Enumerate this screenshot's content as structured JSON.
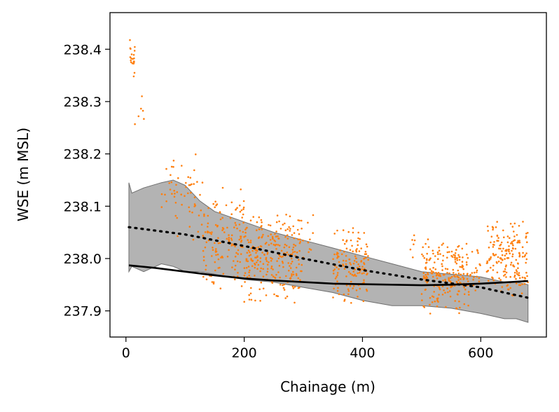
{
  "chart_data": {
    "type": "scatter",
    "title": "",
    "xlabel": "Chainage (m)",
    "ylabel": "WSE (m MSL)",
    "xlim": [
      -27,
      711
    ],
    "ylim": [
      237.85,
      238.47
    ],
    "xticks": [
      0,
      200,
      400,
      600
    ],
    "yticks": [
      237.9,
      238.0,
      238.1,
      238.2,
      238.3,
      238.4
    ],
    "ytick_labels": [
      "237.9",
      "238.0",
      "238.1",
      "238.2",
      "238.3",
      "238.4"
    ],
    "xtick_labels": [
      "0",
      "200",
      "400",
      "600"
    ],
    "grid": false,
    "legend": null,
    "colors": {
      "points": "#ff7f0e",
      "band": "#808080",
      "lines": "#000000"
    },
    "band": {
      "x": [
        5,
        10,
        30,
        60,
        80,
        100,
        125,
        150,
        200,
        250,
        300,
        350,
        400,
        450,
        500,
        550,
        600,
        640,
        660,
        680
      ],
      "upper": [
        238.145,
        238.125,
        238.135,
        238.145,
        238.15,
        238.14,
        238.11,
        238.09,
        238.07,
        238.05,
        238.035,
        238.02,
        238.005,
        237.99,
        237.975,
        237.97,
        237.965,
        237.955,
        237.955,
        237.95
      ],
      "lower": [
        237.975,
        237.985,
        237.975,
        237.99,
        237.985,
        237.975,
        237.975,
        237.97,
        237.96,
        237.955,
        237.945,
        237.935,
        237.92,
        237.91,
        237.91,
        237.905,
        237.895,
        237.885,
        237.885,
        237.878
      ]
    },
    "series": [
      {
        "style": "solid",
        "x": [
          5,
          50,
          100,
          150,
          200,
          250,
          300,
          350,
          400,
          450,
          500,
          550,
          600,
          650,
          680
        ],
        "y": [
          237.987,
          237.982,
          237.975,
          237.968,
          237.962,
          237.958,
          237.955,
          237.952,
          237.951,
          237.95,
          237.949,
          237.95,
          237.952,
          237.955,
          237.957
        ]
      },
      {
        "style": "dotted",
        "x": [
          5,
          100,
          200,
          300,
          400,
          500,
          600,
          680
        ],
        "y": [
          238.06,
          238.046,
          238.024,
          238.0,
          237.978,
          237.96,
          237.945,
          237.925
        ]
      }
    ],
    "scatter_clusters": [
      {
        "x": [
          5,
          15
        ],
        "y": [
          238.33,
          238.44
        ],
        "n": 20
      },
      {
        "x": [
          15,
          40
        ],
        "y": [
          238.22,
          238.35
        ],
        "n": 6
      },
      {
        "x": [
          60,
          130
        ],
        "y": [
          238.02,
          238.22
        ],
        "n": 55
      },
      {
        "x": [
          130,
          200
        ],
        "y": [
          237.93,
          238.14
        ],
        "n": 140
      },
      {
        "x": [
          200,
          300
        ],
        "y": [
          237.91,
          238.1
        ],
        "n": 260
      },
      {
        "x": [
          300,
          320
        ],
        "y": [
          237.95,
          238.09
        ],
        "n": 8
      },
      {
        "x": [
          350,
          410
        ],
        "y": [
          237.91,
          238.07
        ],
        "n": 140
      },
      {
        "x": [
          480,
          490
        ],
        "y": [
          237.99,
          238.1
        ],
        "n": 6
      },
      {
        "x": [
          500,
          580
        ],
        "y": [
          237.89,
          238.04
        ],
        "n": 220
      },
      {
        "x": [
          580,
          600
        ],
        "y": [
          237.93,
          238.02
        ],
        "n": 20
      },
      {
        "x": [
          610,
          680
        ],
        "y": [
          237.92,
          238.08
        ],
        "n": 180
      }
    ]
  }
}
